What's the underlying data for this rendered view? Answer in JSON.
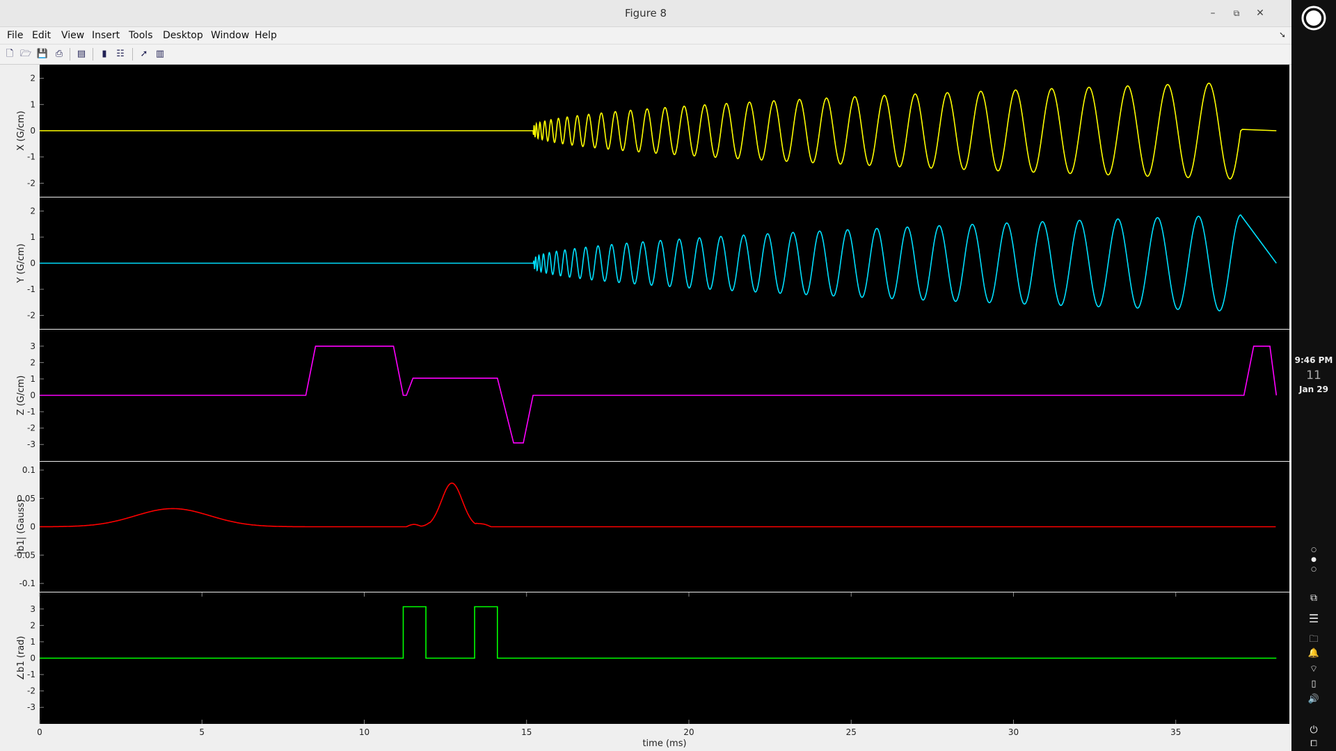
{
  "window": {
    "title": "Figure 8",
    "controls": {
      "minimize": "–",
      "restore": "⧉",
      "close": "✕"
    }
  },
  "menu": [
    "File",
    "Edit",
    "View",
    "Insert",
    "Tools",
    "Desktop",
    "Window",
    "Help"
  ],
  "toolbar_icons": [
    "new-figure-icon",
    "open-file-icon",
    "save-icon",
    "print-icon",
    "print-preview-icon",
    "colorbar-icon",
    "legend-icon",
    "pointer-icon",
    "property-editor-icon"
  ],
  "panel": {
    "clock_time": "9:46 PM",
    "clock_day": "11",
    "clock_date": "Jan 29"
  },
  "colors": {
    "x": "#ffff00",
    "y": "#00e0ff",
    "z": "#ff00ff",
    "mag": "#ff0000",
    "phase": "#00ff00"
  },
  "chart_data": {
    "type": "line",
    "xlabel": "time (ms)",
    "xlim": [
      0,
      38.5
    ],
    "xticks": [
      0,
      5,
      10,
      15,
      20,
      25,
      30,
      35
    ],
    "xticklabels": [
      "0",
      "5",
      "10",
      "15",
      "20",
      "25",
      "30",
      "35"
    ],
    "grid": false,
    "subplots": [
      {
        "ylabel": "X (G/cm)",
        "ylim": [
          -2.2,
          2.2
        ],
        "yticks": [
          -2,
          -1,
          0,
          1,
          2
        ],
        "yticklabels": [
          "-2",
          "-1",
          "0",
          "1",
          "2"
        ],
        "signal": "spiral_cos",
        "points": [
          [
            0,
            0
          ],
          [
            15.2,
            0
          ],
          [
            37.0,
            1.8
          ],
          [
            37.05,
            0.05
          ],
          [
            38.1,
            0
          ]
        ],
        "spiral": {
          "t_start": 15.2,
          "t_end": 37.0,
          "amp_start": 0.15,
          "amp_end": 1.85,
          "cycles": 33
        },
        "color": "#ffff00"
      },
      {
        "ylabel": "Y (G/cm)",
        "ylim": [
          -2.2,
          2.2
        ],
        "yticks": [
          -2,
          -1,
          0,
          1,
          2
        ],
        "yticklabels": [
          "-2",
          "-1",
          "0",
          "1",
          "2"
        ],
        "signal": "spiral_sin",
        "points": [
          [
            0,
            0
          ],
          [
            15.2,
            0
          ],
          [
            37.0,
            1.85
          ],
          [
            38.1,
            0
          ]
        ],
        "spiral": {
          "t_start": 15.2,
          "t_end": 37.0,
          "amp_start": 0.15,
          "amp_end": 1.85,
          "cycles": 33
        },
        "color": "#00e0ff"
      },
      {
        "ylabel": "Z (G/cm)",
        "ylim": [
          -3.5,
          3.5
        ],
        "yticks": [
          -3,
          -2,
          -1,
          0,
          1,
          2,
          3
        ],
        "yticklabels": [
          "-3",
          "-2",
          "-1",
          "0",
          "1",
          "2",
          "3"
        ],
        "signal": "piecewise",
        "points": [
          [
            0,
            0
          ],
          [
            8.2,
            0
          ],
          [
            8.5,
            3
          ],
          [
            10.9,
            3
          ],
          [
            11.2,
            0
          ],
          [
            11.3,
            0
          ],
          [
            11.5,
            1.05
          ],
          [
            14.1,
            1.05
          ],
          [
            14.6,
            -2.9
          ],
          [
            14.9,
            -2.9
          ],
          [
            15.2,
            0
          ],
          [
            37.1,
            0
          ],
          [
            37.4,
            3
          ],
          [
            37.9,
            3
          ],
          [
            38.1,
            0
          ]
        ],
        "color": "#ff00ff"
      },
      {
        "ylabel": "|b1| (Gauss)",
        "ylim": [
          -0.1,
          0.1
        ],
        "yticks": [
          -0.1,
          -0.05,
          0,
          0.05,
          0.1
        ],
        "yticklabels": [
          "-0.1",
          "-0.05",
          "0",
          "0.05",
          "0.1"
        ],
        "signal": "rf",
        "points": [
          [
            0,
            0
          ],
          [
            1.5,
            0
          ],
          [
            4.0,
            0.032
          ],
          [
            6.5,
            0
          ],
          [
            11.0,
            0
          ],
          [
            11.5,
            0.006
          ],
          [
            11.7,
            0.0
          ],
          [
            12.7,
            0.078
          ],
          [
            13.3,
            0.0
          ],
          [
            13.6,
            0.006
          ],
          [
            14.0,
            0
          ],
          [
            38.1,
            0
          ]
        ],
        "rf": {
          "lobe1": {
            "center": 4.1,
            "width": 1.15,
            "height": 0.032
          },
          "lobe2": {
            "center": 12.7,
            "width": 0.32,
            "height": 0.078
          }
        },
        "color": "#ff0000"
      },
      {
        "ylabel": "∠b1 (rad)",
        "ylim": [
          -3.5,
          3.5
        ],
        "yticks": [
          -3,
          -2,
          -1,
          0,
          1,
          2,
          3
        ],
        "yticklabels": [
          "-3",
          "-2",
          "-1",
          "0",
          "1",
          "2",
          "3"
        ],
        "signal": "piecewise",
        "points": [
          [
            0,
            0
          ],
          [
            11.2,
            0
          ],
          [
            11.2,
            3.14
          ],
          [
            11.9,
            3.14
          ],
          [
            11.9,
            0
          ],
          [
            13.4,
            0
          ],
          [
            13.4,
            3.14
          ],
          [
            14.1,
            3.14
          ],
          [
            14.1,
            0
          ],
          [
            38.1,
            0
          ]
        ],
        "color": "#00ff00"
      }
    ]
  }
}
